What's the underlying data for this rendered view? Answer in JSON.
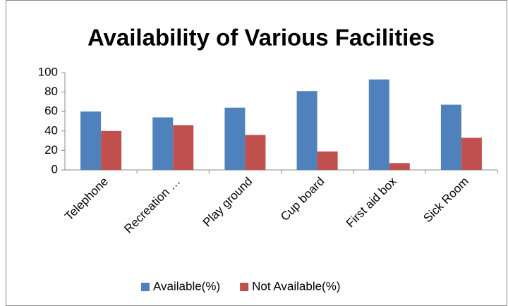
{
  "chart_data": {
    "type": "bar",
    "title": "Availability of Various Facilities",
    "categories": [
      "Telephone",
      "Recreation …",
      "Play ground",
      "Cup board",
      "First aid box",
      "Sick Room"
    ],
    "series": [
      {
        "name": "Available(%)",
        "color": "#4f81bd",
        "values": [
          60,
          54,
          64,
          81,
          93,
          67
        ]
      },
      {
        "name": "Not Available(%)",
        "color": "#c0504d",
        "values": [
          40,
          46,
          36,
          19,
          7,
          33
        ]
      }
    ],
    "ylim": [
      0,
      100
    ],
    "yticks": [
      0,
      20,
      40,
      60,
      80,
      100
    ],
    "grid": false,
    "legend": "bottom"
  }
}
